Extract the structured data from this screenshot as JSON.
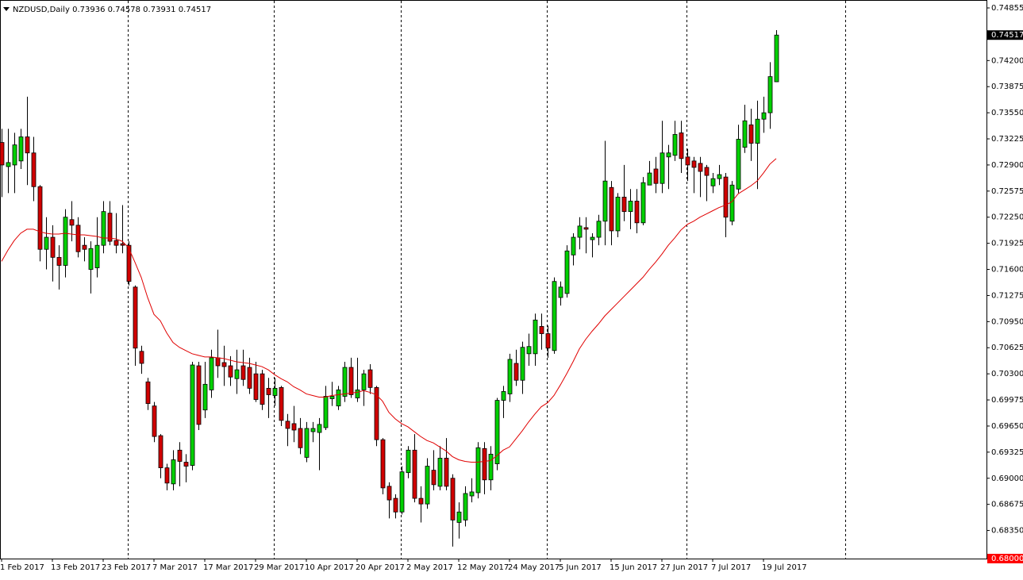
{
  "chart_data": {
    "type": "candlestick",
    "title": "NZDUSD,Daily",
    "categories": [
      "1 Feb 2017",
      null,
      null,
      null,
      null,
      null,
      null,
      null,
      "13 Feb 2017",
      null,
      null,
      null,
      null,
      null,
      null,
      null,
      "23 Feb 2017",
      null,
      null,
      null,
      null,
      null,
      null,
      null,
      "7 Mar 2017",
      null,
      null,
      null,
      null,
      null,
      null,
      null,
      "17 Mar 2017",
      null,
      null,
      null,
      null,
      null,
      null,
      null,
      "29 Mar 2017",
      null,
      null,
      null,
      null,
      null,
      null,
      null,
      "10 Apr 2017",
      null,
      null,
      null,
      null,
      null,
      null,
      null,
      "20 Apr 2017",
      null,
      null,
      null,
      null,
      null,
      null,
      null,
      "2 May 2017",
      null,
      null,
      null,
      null,
      null,
      null,
      null,
      "12 May 2017",
      null,
      null,
      null,
      null,
      null,
      null,
      null,
      "24 May 2017",
      null,
      null,
      null,
      null,
      null,
      null,
      null,
      "5 Jun 2017",
      null,
      null,
      null,
      null,
      null,
      null,
      null,
      "15 Jun 2017",
      null,
      null,
      null,
      null,
      null,
      null,
      null,
      "27 Jun 2017",
      null,
      null,
      null,
      null,
      null,
      null,
      null,
      "7 Jul 2017",
      null,
      null,
      null,
      null,
      null,
      null,
      null,
      "19 Jul 2017",
      null,
      null
    ],
    "open": [
      0.7318,
      0.7288,
      0.729,
      0.7295,
      0.7325,
      0.7305,
      0.7263,
      0.7185,
      0.72,
      0.7175,
      0.7165,
      0.7222,
      0.7215,
      0.719,
      0.716,
      0.7162,
      0.719,
      0.723,
      0.7196,
      0.7192,
      0.719,
      0.7138,
      0.7058,
      0.702,
      0.699,
      0.6953,
      0.6913,
      0.6893,
      0.6935,
      0.692,
      0.6916,
      0.704,
      0.6985,
      0.701,
      0.705,
      0.7044,
      0.704,
      0.7024,
      0.704,
      0.7038,
      0.703,
      0.703,
      0.7012,
      0.7003,
      0.7013,
      0.6971,
      0.6968,
      0.6962,
      0.6926,
      0.6958,
      0.6957,
      0.6963,
      0.6999,
      0.699,
      0.7002,
      0.7038,
      0.7,
      0.701,
      0.7035,
      0.7013,
      0.6948,
      0.689,
      0.6875,
      0.6858,
      0.6907,
      0.6935,
      0.6875,
      0.6868,
      0.691,
      0.689,
      0.6925,
      0.69,
      0.6845,
      0.6848,
      0.6878,
      0.6882,
      0.6937,
      0.6898,
      0.6918,
      0.6997,
      0.7005,
      0.7043,
      0.7022,
      0.7055,
      0.7055,
      0.7089,
      0.708,
      0.7059,
      0.7125,
      0.713,
      0.7178,
      0.72,
      0.7212,
      0.7197,
      0.72,
      0.722,
      0.7262,
      0.7208,
      0.725,
      0.7232,
      0.7245,
      0.7218,
      0.7265,
      0.7285,
      0.7267,
      0.73,
      0.7302,
      0.733,
      0.73,
      0.7295,
      0.7292,
      0.7287,
      0.7264,
      0.7273,
      0.7275,
      0.722,
      0.726,
      0.7312,
      0.734,
      0.7317,
      0.7347,
      0.7355,
      0.73936
    ],
    "high": [
      0.7335,
      0.7335,
      0.733,
      0.7335,
      0.7375,
      0.7325,
      0.7265,
      0.7225,
      0.7215,
      0.719,
      0.7235,
      0.7245,
      0.7225,
      0.72,
      0.7195,
      0.7225,
      0.7245,
      0.7245,
      0.723,
      0.724,
      0.7195,
      0.714,
      0.7065,
      0.7025,
      0.6995,
      0.6955,
      0.6918,
      0.6935,
      0.6945,
      0.693,
      0.7045,
      0.7045,
      0.7045,
      0.706,
      0.7085,
      0.7065,
      0.7052,
      0.706,
      0.706,
      0.705,
      0.7045,
      0.7035,
      0.7025,
      0.7025,
      0.7015,
      0.698,
      0.699,
      0.6975,
      0.697,
      0.697,
      0.6975,
      0.7015,
      0.702,
      0.7015,
      0.7045,
      0.705,
      0.705,
      0.7035,
      0.7042,
      0.7015,
      0.695,
      0.6895,
      0.688,
      0.6915,
      0.694,
      0.6955,
      0.689,
      0.6925,
      0.6935,
      0.694,
      0.695,
      0.6905,
      0.687,
      0.689,
      0.69,
      0.6945,
      0.6945,
      0.694,
      0.7,
      0.7015,
      0.7055,
      0.706,
      0.707,
      0.708,
      0.7105,
      0.7105,
      0.709,
      0.715,
      0.7145,
      0.719,
      0.7205,
      0.7225,
      0.7225,
      0.7205,
      0.7228,
      0.732,
      0.727,
      0.7255,
      0.729,
      0.726,
      0.726,
      0.7275,
      0.7295,
      0.73,
      0.7345,
      0.7315,
      0.7345,
      0.7345,
      0.731,
      0.73,
      0.73,
      0.729,
      0.728,
      0.729,
      0.728,
      0.727,
      0.734,
      0.7365,
      0.736,
      0.737,
      0.7375,
      0.7418,
      0.74578
    ],
    "low": [
      0.725,
      0.7255,
      0.7255,
      0.7285,
      0.7265,
      0.7245,
      0.717,
      0.716,
      0.7145,
      0.7135,
      0.715,
      0.7195,
      0.7175,
      0.717,
      0.713,
      0.715,
      0.718,
      0.719,
      0.718,
      0.718,
      0.714,
      0.704,
      0.703,
      0.6985,
      0.6945,
      0.69,
      0.6885,
      0.6885,
      0.689,
      0.6895,
      0.691,
      0.696,
      0.6975,
      0.7,
      0.7025,
      0.7015,
      0.7015,
      0.7005,
      0.7015,
      0.7005,
      0.6995,
      0.6985,
      0.6975,
      0.699,
      0.6965,
      0.694,
      0.6945,
      0.693,
      0.692,
      0.6945,
      0.691,
      0.696,
      0.699,
      0.6985,
      0.6995,
      0.7,
      0.6995,
      0.699,
      0.7005,
      0.694,
      0.688,
      0.685,
      0.685,
      0.6855,
      0.69,
      0.687,
      0.6845,
      0.6862,
      0.6885,
      0.6885,
      0.6885,
      0.6815,
      0.6825,
      0.684,
      0.687,
      0.6875,
      0.688,
      0.6885,
      0.691,
      0.6975,
      0.6995,
      0.7015,
      0.7005,
      0.704,
      0.704,
      0.706,
      0.705,
      0.7055,
      0.7115,
      0.7125,
      0.7165,
      0.7185,
      0.718,
      0.7175,
      0.719,
      0.719,
      0.719,
      0.72,
      0.722,
      0.721,
      0.7205,
      0.7215,
      0.7265,
      0.7255,
      0.7255,
      0.726,
      0.7295,
      0.728,
      0.727,
      0.7255,
      0.725,
      0.7245,
      0.7255,
      0.7265,
      0.72,
      0.7215,
      0.7255,
      0.7305,
      0.7295,
      0.726,
      0.733,
      0.7335,
      0.73931
    ],
    "close": [
      0.729,
      0.7293,
      0.7315,
      0.7325,
      0.7305,
      0.7263,
      0.7185,
      0.72,
      0.7175,
      0.7165,
      0.7225,
      0.7215,
      0.7182,
      0.7185,
      0.7186,
      0.719,
      0.7232,
      0.7195,
      0.719,
      0.719,
      0.7145,
      0.7062,
      0.7043,
      0.6993,
      0.6952,
      0.6913,
      0.6894,
      0.6923,
      0.6921,
      0.6915,
      0.7041,
      0.6967,
      0.7017,
      0.705,
      0.704,
      0.7039,
      0.7026,
      0.7035,
      0.7023,
      0.7012,
      0.6998,
      0.6992,
      0.7004,
      0.7012,
      0.6972,
      0.6962,
      0.696,
      0.6938,
      0.6962,
      0.6962,
      0.6967,
      0.7002,
      0.7002,
      0.701,
      0.7038,
      0.7004,
      0.701,
      0.703,
      0.7013,
      0.6948,
      0.6888,
      0.6873,
      0.6858,
      0.6908,
      0.6935,
      0.6875,
      0.6868,
      0.6915,
      0.6892,
      0.6925,
      0.689,
      0.6848,
      0.6858,
      0.6881,
      0.6883,
      0.6938,
      0.6898,
      0.693,
      0.6997,
      0.7008,
      0.7048,
      0.7022,
      0.7063,
      0.7064,
      0.7097,
      0.708,
      0.7062,
      0.7145,
      0.7138,
      0.7183,
      0.72,
      0.7214,
      0.721,
      0.72,
      0.722,
      0.727,
      0.7208,
      0.725,
      0.7232,
      0.7245,
      0.7218,
      0.7268,
      0.728,
      0.7267,
      0.7305,
      0.7305,
      0.7328,
      0.7298,
      0.729,
      0.7287,
      0.7282,
      0.7277,
      0.7273,
      0.7278,
      0.7225,
      0.7265,
      0.7322,
      0.7345,
      0.7317,
      0.7347,
      0.7355,
      0.74,
      0.74517
    ],
    "up_color": "#00d000",
    "down_color": "#d00000",
    "ma": {
      "color": "#e00000",
      "values": [
        0.717,
        0.7184,
        0.7196,
        0.7205,
        0.721,
        0.721,
        0.7207,
        0.7205,
        0.7204,
        0.7204,
        0.7205,
        0.7204,
        0.7203,
        0.7203,
        0.7202,
        0.7201,
        0.7199,
        0.7199,
        0.7198,
        0.7195,
        0.7187,
        0.7169,
        0.715,
        0.7125,
        0.7104,
        0.7096,
        0.7081,
        0.7069,
        0.7063,
        0.7059,
        0.7055,
        0.7053,
        0.7051,
        0.7051,
        0.705,
        0.7049,
        0.7047,
        0.7045,
        0.7044,
        0.7043,
        0.7041,
        0.7039,
        0.7035,
        0.7029,
        0.7024,
        0.702,
        0.7014,
        0.701,
        0.7005,
        0.7003,
        0.7001,
        0.7001,
        0.7003,
        0.7004,
        0.7005,
        0.7006,
        0.7007,
        0.7009,
        0.7007,
        0.7004,
        0.6996,
        0.6982,
        0.6974,
        0.6968,
        0.6964,
        0.6958,
        0.6952,
        0.6947,
        0.6944,
        0.6939,
        0.6934,
        0.6927,
        0.6923,
        0.6921,
        0.692,
        0.692,
        0.6921,
        0.6922,
        0.6928,
        0.6935,
        0.6939,
        0.6949,
        0.6959,
        0.697,
        0.698,
        0.6989,
        0.6994,
        0.7003,
        0.7016,
        0.703,
        0.7045,
        0.7061,
        0.7073,
        0.7083,
        0.7092,
        0.7102,
        0.711,
        0.7118,
        0.7126,
        0.7134,
        0.7142,
        0.715,
        0.716,
        0.7169,
        0.7179,
        0.719,
        0.7199,
        0.7209,
        0.7216,
        0.722,
        0.7225,
        0.7229,
        0.7233,
        0.7237,
        0.724,
        0.7244,
        0.7254,
        0.7259,
        0.7264,
        0.727,
        0.728,
        0.7291,
        0.7298
      ]
    },
    "ylim": [
      0.68,
      0.74934
    ],
    "yticks": [
      {
        "value": 0.74855,
        "label": "0.74855"
      },
      {
        "value": 0.742,
        "label": "0.74200"
      },
      {
        "value": 0.73875,
        "label": "0.73875"
      },
      {
        "value": 0.7355,
        "label": "0.73550"
      },
      {
        "value": 0.73225,
        "label": "0.73225"
      },
      {
        "value": 0.729,
        "label": "0.72900"
      },
      {
        "value": 0.72575,
        "label": "0.72575"
      },
      {
        "value": 0.7225,
        "label": "0.72250"
      },
      {
        "value": 0.71925,
        "label": "0.71925"
      },
      {
        "value": 0.716,
        "label": "0.71600"
      },
      {
        "value": 0.71275,
        "label": "0.71275"
      },
      {
        "value": 0.7095,
        "label": "0.70950"
      },
      {
        "value": 0.70625,
        "label": "0.70625"
      },
      {
        "value": 0.703,
        "label": "0.70300"
      },
      {
        "value": 0.69975,
        "label": "0.69975"
      },
      {
        "value": 0.6965,
        "label": "0.69650"
      },
      {
        "value": 0.69325,
        "label": "0.69325"
      },
      {
        "value": 0.69,
        "label": "0.69000"
      },
      {
        "value": 0.68675,
        "label": "0.68675"
      },
      {
        "value": 0.6835,
        "label": "0.68350"
      }
    ],
    "level": {
      "value": 0.68,
      "label": "0.68000",
      "color": "#ff0000"
    }
  }
}
